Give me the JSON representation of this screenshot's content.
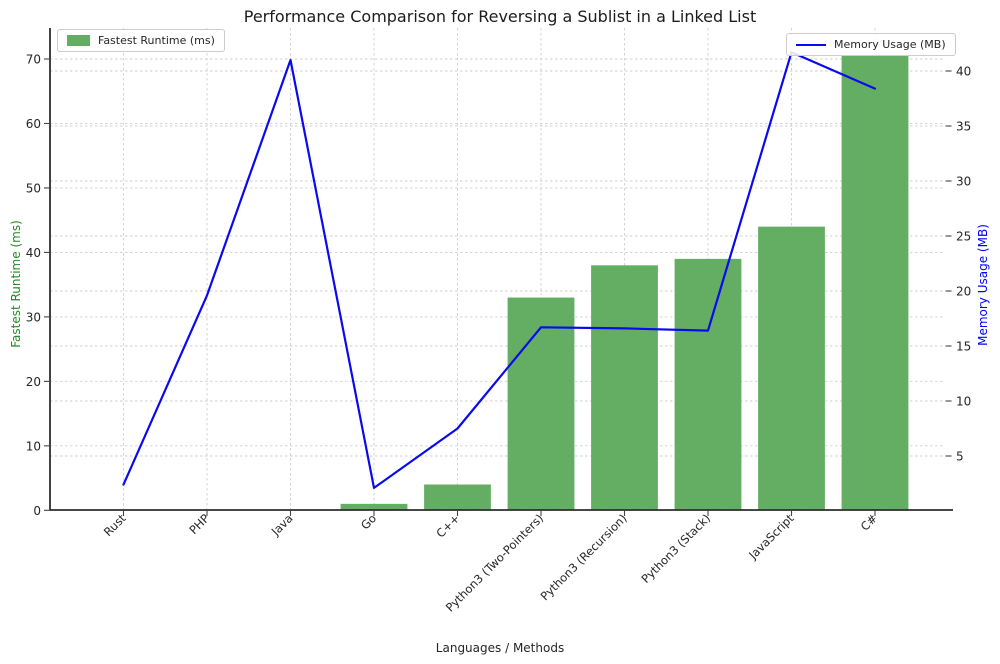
{
  "title": "Performance Comparison for Reversing a Sublist in a Linked List",
  "chart_data": {
    "type": "bar",
    "categories": [
      "Rust",
      "PHP",
      "Java",
      "Go",
      "C++",
      "Python3 (Two-Pointers)",
      "Python3 (Recursion)",
      "Python3 (Stack)",
      "JavaScript",
      "C#"
    ],
    "series": [
      {
        "name": "Fastest Runtime (ms)",
        "type": "bar",
        "axis": "left",
        "color": "#64ae64",
        "values": [
          0,
          0,
          0,
          1,
          4,
          33,
          38,
          39,
          44,
          70.5
        ]
      },
      {
        "name": "Memory Usage (MB)",
        "type": "line",
        "axis": "right",
        "color": "#0a0aee",
        "values": [
          2.4,
          19.6,
          41.0,
          2.1,
          7.5,
          16.7,
          16.6,
          16.4,
          41.7,
          38.4
        ]
      }
    ],
    "xlabel": "Languages / Methods",
    "left_axis": {
      "label": "Fastest Runtime (ms)",
      "color": "#228b22",
      "ticks": [
        0,
        10,
        20,
        30,
        40,
        50,
        60,
        70
      ],
      "range": [
        0,
        74.8
      ]
    },
    "right_axis": {
      "label": "Memory Usage (MB)",
      "color": "#0000ff",
      "ticks": [
        5,
        10,
        15,
        20,
        25,
        30,
        35,
        40
      ],
      "range": [
        0.1,
        43.9
      ]
    },
    "grid": true,
    "legend_positions": [
      "upper-left",
      "upper-right"
    ]
  }
}
